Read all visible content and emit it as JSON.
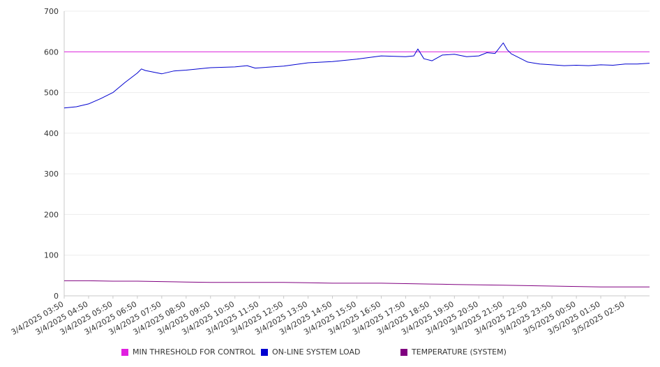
{
  "chart_data": {
    "type": "line",
    "title": "",
    "xlabel": "",
    "ylabel": "",
    "ylim": [
      0,
      700
    ],
    "yticks": [
      0,
      100,
      200,
      300,
      400,
      500,
      600,
      700
    ],
    "grid": true,
    "legend_position": "bottom",
    "x_range": [
      "3/4/2025 03:50",
      "3/5/2025 03:50"
    ],
    "x_ticks": [
      "3/4/2025 03:50",
      "3/4/2025 04:50",
      "3/4/2025 05:50",
      "3/4/2025 06:50",
      "3/4/2025 07:50",
      "3/4/2025 08:50",
      "3/4/2025 09:50",
      "3/4/2025 10:50",
      "3/4/2025 11:50",
      "3/4/2025 12:50",
      "3/4/2025 13:50",
      "3/4/2025 14:50",
      "3/4/2025 15:50",
      "3/4/2025 16:50",
      "3/4/2025 17:50",
      "3/4/2025 18:50",
      "3/4/2025 19:50",
      "3/4/2025 20:50",
      "3/4/2025 21:50",
      "3/4/2025 22:50",
      "3/4/2025 23:50",
      "3/5/2025 00:50",
      "3/5/2025 01:50",
      "3/5/2025 02:50"
    ],
    "series": [
      {
        "name": "MIN THRESHOLD FOR CONTROL",
        "color": "#e020e0",
        "x": [
          "3/4/2025 03:50",
          "3/5/2025 03:50"
        ],
        "values": [
          600,
          600
        ]
      },
      {
        "name": "ON-LINE SYSTEM LOAD",
        "color": "#0000d0",
        "x": [
          "3/4/2025 03:50",
          "3/4/2025 04:20",
          "3/4/2025 04:50",
          "3/4/2025 05:20",
          "3/4/2025 05:50",
          "3/4/2025 06:20",
          "3/4/2025 06:50",
          "3/4/2025 07:00",
          "3/4/2025 07:10",
          "3/4/2025 07:20",
          "3/4/2025 07:50",
          "3/4/2025 08:20",
          "3/4/2025 08:50",
          "3/4/2025 09:50",
          "3/4/2025 10:50",
          "3/4/2025 11:20",
          "3/4/2025 11:40",
          "3/4/2025 12:50",
          "3/4/2025 13:50",
          "3/4/2025 14:50",
          "3/4/2025 15:50",
          "3/4/2025 16:50",
          "3/4/2025 17:50",
          "3/4/2025 18:10",
          "3/4/2025 18:20",
          "3/4/2025 18:35",
          "3/4/2025 18:55",
          "3/4/2025 19:20",
          "3/4/2025 19:50",
          "3/4/2025 20:20",
          "3/4/2025 20:50",
          "3/4/2025 21:10",
          "3/4/2025 21:30",
          "3/4/2025 21:50",
          "3/4/2025 22:00",
          "3/4/2025 22:10",
          "3/4/2025 22:20",
          "3/4/2025 22:50",
          "3/4/2025 23:20",
          "3/4/2025 23:50",
          "3/5/2025 00:20",
          "3/5/2025 00:50",
          "3/5/2025 01:20",
          "3/5/2025 01:50",
          "3/5/2025 02:20",
          "3/5/2025 02:50",
          "3/5/2025 03:20",
          "3/5/2025 03:50"
        ],
        "values": [
          462,
          465,
          472,
          485,
          500,
          525,
          548,
          558,
          554,
          552,
          546,
          553,
          555,
          561,
          563,
          566,
          560,
          565,
          573,
          576,
          582,
          590,
          588,
          590,
          607,
          583,
          578,
          592,
          594,
          588,
          590,
          598,
          596,
          622,
          605,
          595,
          590,
          575,
          570,
          568,
          566,
          567,
          566,
          568,
          567,
          570,
          570,
          572
        ]
      },
      {
        "name": "TEMPERATURE (SYSTEM)",
        "color": "#800080",
        "x": [
          "3/4/2025 03:50",
          "3/4/2025 04:50",
          "3/4/2025 05:50",
          "3/4/2025 06:50",
          "3/4/2025 07:50",
          "3/4/2025 08:50",
          "3/4/2025 09:50",
          "3/4/2025 10:50",
          "3/4/2025 11:50",
          "3/4/2025 12:50",
          "3/4/2025 13:50",
          "3/4/2025 14:50",
          "3/4/2025 15:50",
          "3/4/2025 16:50",
          "3/4/2025 17:50",
          "3/4/2025 18:50",
          "3/4/2025 19:50",
          "3/4/2025 20:50",
          "3/4/2025 21:50",
          "3/4/2025 22:50",
          "3/4/2025 23:50",
          "3/5/2025 00:50",
          "3/5/2025 01:50",
          "3/5/2025 02:50",
          "3/5/2025 03:50"
        ],
        "values": [
          37,
          37,
          36,
          36,
          35,
          34,
          33,
          33,
          33,
          33,
          32,
          31,
          31,
          31,
          30,
          29,
          28,
          27,
          26,
          25,
          24,
          23,
          22,
          22,
          22
        ]
      }
    ]
  }
}
